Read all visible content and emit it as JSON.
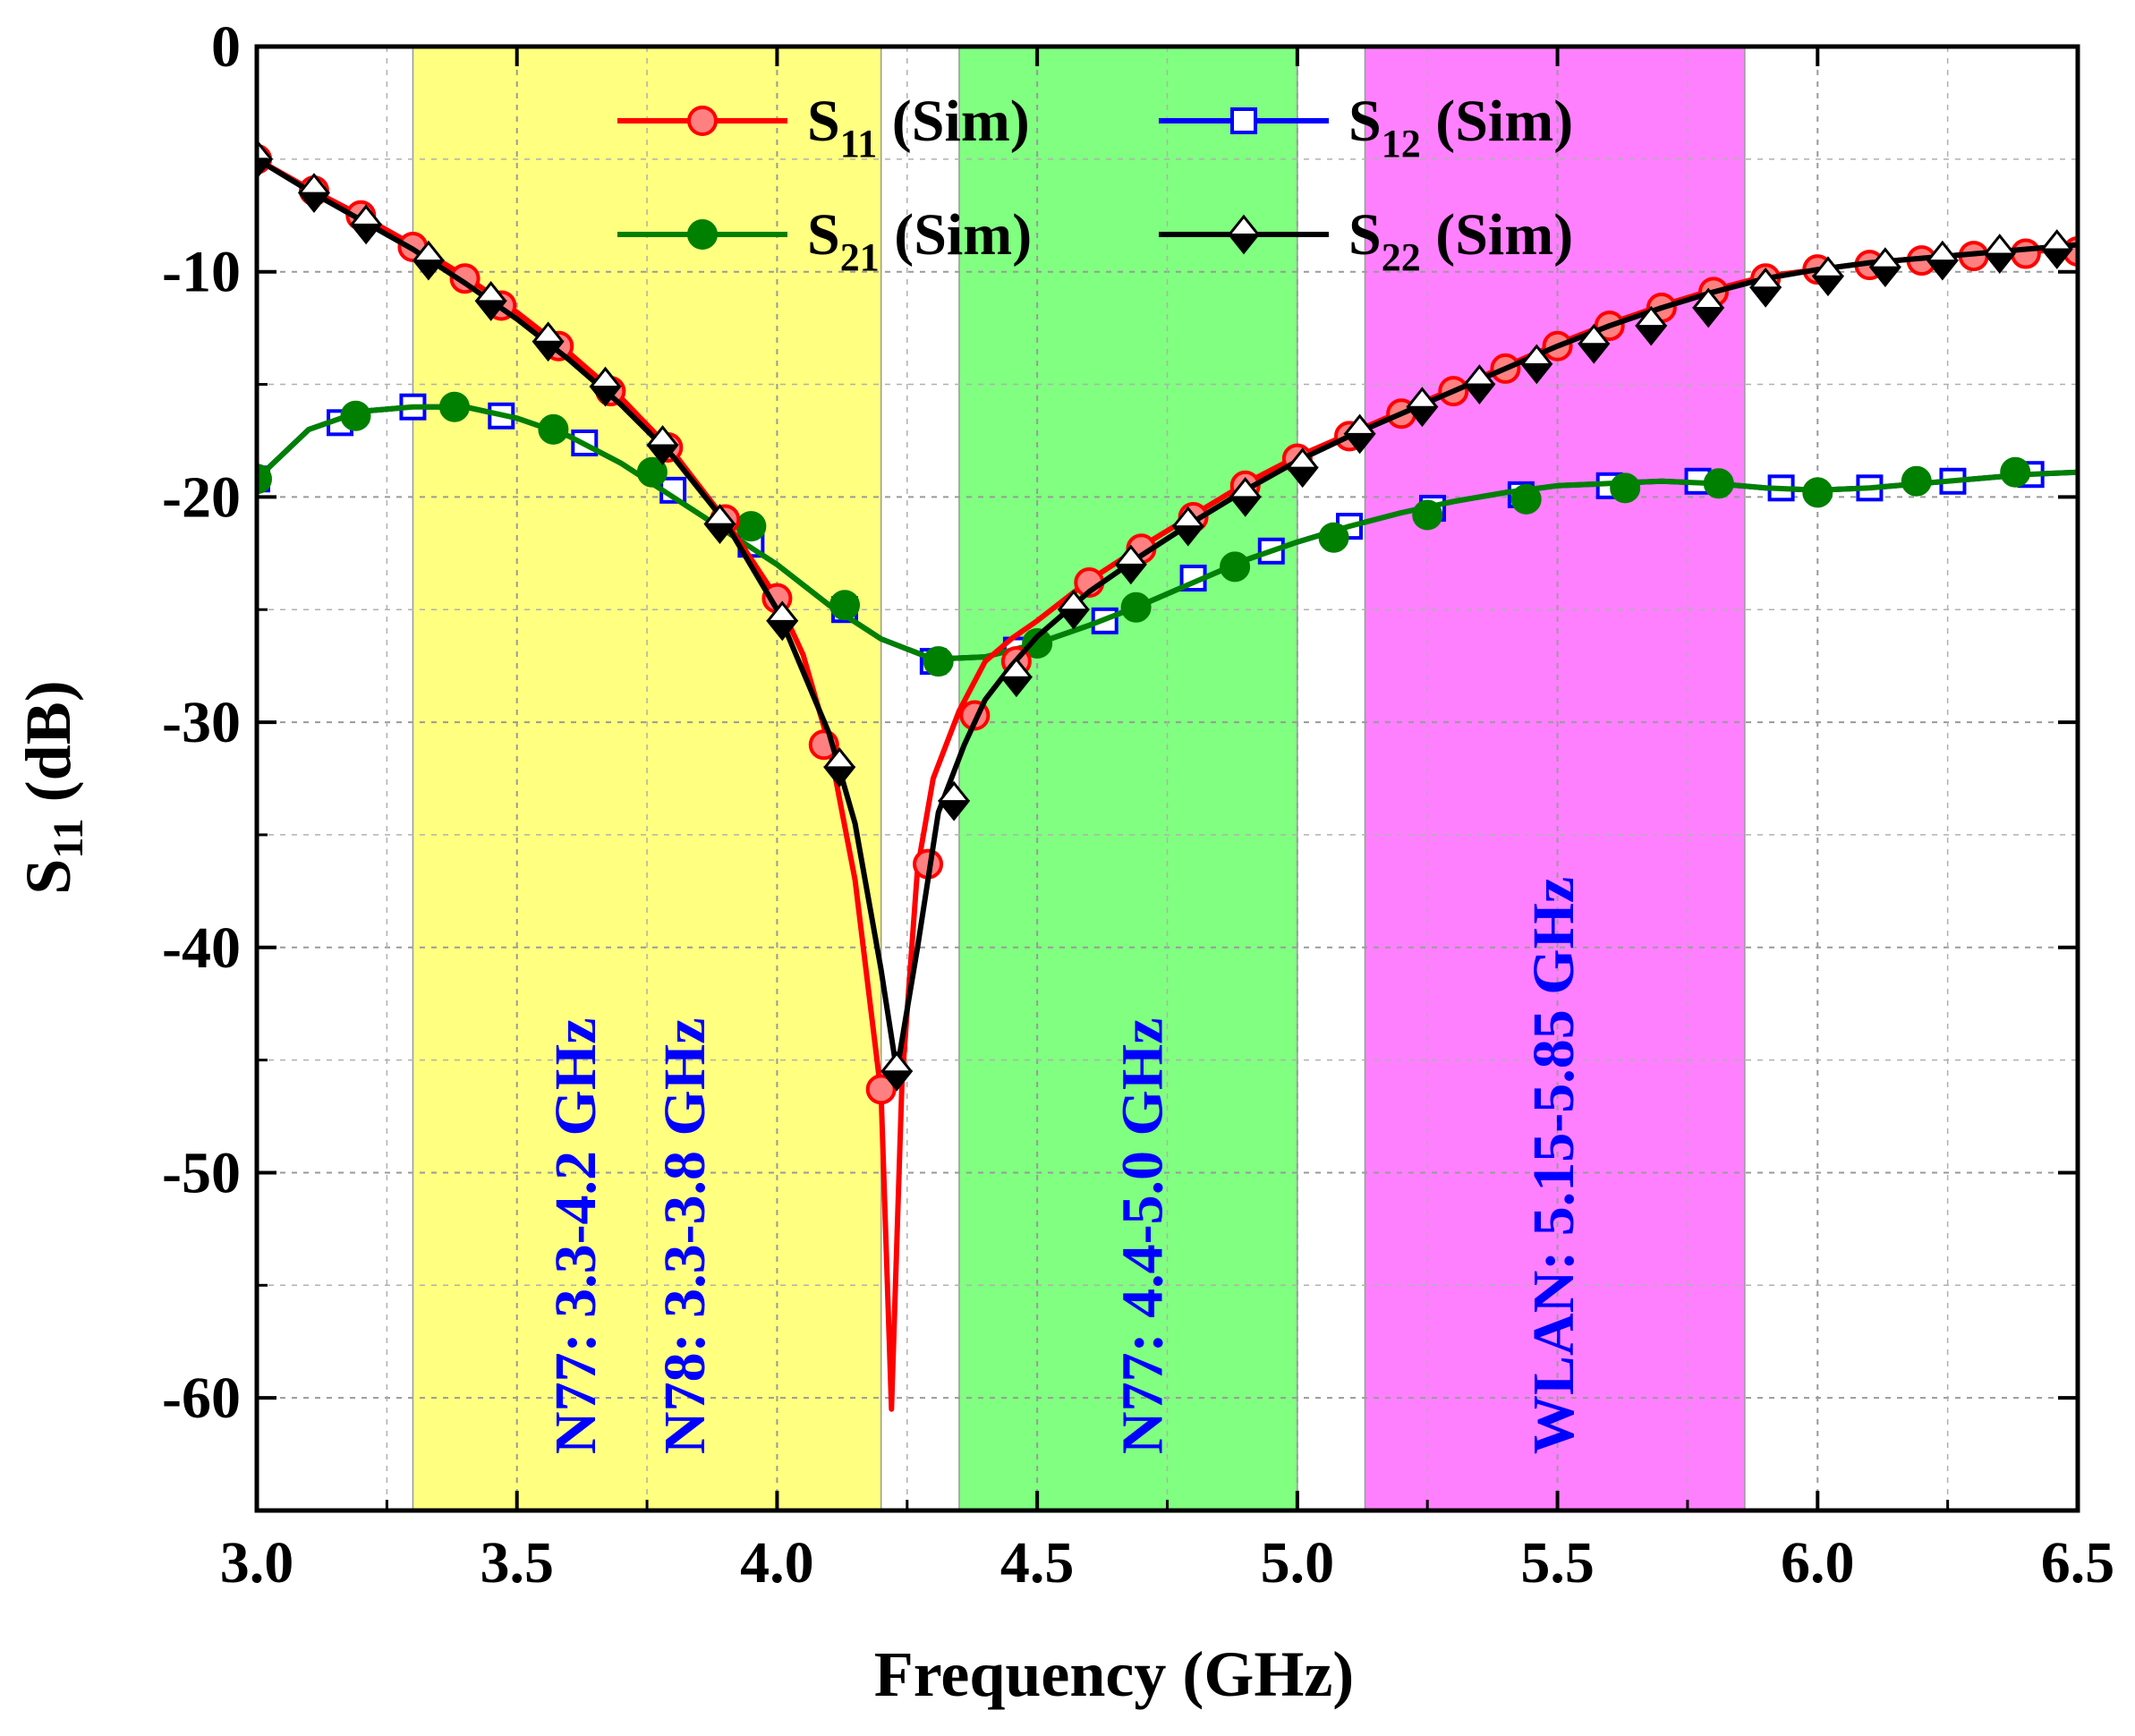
{
  "chart_data": {
    "type": "line",
    "xlabel": "Frequency (GHz)",
    "ylabel_main": "S",
    "ylabel_sub": "11",
    "ylabel_unit": " (dB)",
    "xlim": [
      3.0,
      6.5
    ],
    "ylim": [
      -65,
      0
    ],
    "xticks": [
      3.0,
      3.5,
      4.0,
      4.5,
      5.0,
      5.5,
      6.0,
      6.5
    ],
    "xtick_labels": [
      "3.0",
      "3.5",
      "4.0",
      "4.5",
      "5.0",
      "5.5",
      "6.0",
      "6.5"
    ],
    "yticks": [
      0,
      -10,
      -20,
      -30,
      -40,
      -50,
      -60
    ],
    "ytick_labels": [
      "0",
      "-10",
      "-20",
      "-30",
      "-40",
      "-50",
      "-60"
    ],
    "grid": true,
    "bands": [
      {
        "from": 3.3,
        "to": 4.2,
        "color": "#ffff80",
        "labels": [
          "N77: 3.3-4.2 GHz",
          "N78: 3.3-3.8 GHz"
        ],
        "label_x": [
          3.65,
          3.86
        ]
      },
      {
        "from": 4.35,
        "to": 5.0,
        "color": "#80ff80",
        "labels": [
          "N77: 4.4-5.0 GHz"
        ],
        "label_x": [
          4.74
        ]
      },
      {
        "from": 5.13,
        "to": 5.86,
        "color": "#ff80ff",
        "labels": [
          "WLAN: 5.15-5.85 GHz"
        ],
        "label_x": [
          5.53
        ]
      }
    ],
    "series": [
      {
        "name_main": "S",
        "name_sub": "11",
        "name_tail": "  (Sim)",
        "color": "#ff0000",
        "marker": "circle",
        "marker_fill": "#ff8080",
        "x": [
          3.0,
          3.1,
          3.2,
          3.3,
          3.4,
          3.5,
          3.6,
          3.7,
          3.8,
          3.9,
          4.0,
          4.05,
          4.1,
          4.15,
          4.2,
          4.22,
          4.24,
          4.27,
          4.3,
          4.35,
          4.4,
          4.45,
          4.5,
          4.6,
          4.7,
          4.8,
          4.9,
          5.0,
          5.1,
          5.2,
          5.3,
          5.4,
          5.5,
          5.6,
          5.7,
          5.8,
          5.9,
          6.0,
          6.1,
          6.2,
          6.3,
          6.4,
          6.5
        ],
        "y": [
          -5.0,
          -6.3,
          -7.5,
          -8.8,
          -10.2,
          -11.8,
          -13.6,
          -15.6,
          -18.0,
          -21.0,
          -24.5,
          -27.0,
          -31.0,
          -37.0,
          -46.5,
          -60.5,
          -46.0,
          -36.5,
          -32.5,
          -29.5,
          -27.3,
          -26.3,
          -25.5,
          -23.7,
          -22.2,
          -20.8,
          -19.4,
          -18.2,
          -17.2,
          -16.2,
          -15.2,
          -14.2,
          -13.2,
          -12.3,
          -11.5,
          -10.8,
          -10.2,
          -9.9,
          -9.6,
          -9.4,
          -9.2,
          -9.1,
          -9.0
        ],
        "marker_x": [
          3.0,
          3.11,
          3.2,
          3.3,
          3.4,
          3.47,
          3.58,
          3.68,
          3.79,
          3.9,
          4.0,
          4.09,
          4.2,
          4.29,
          4.38,
          4.46,
          4.6,
          4.7,
          4.8,
          4.9,
          5.0,
          5.1,
          5.2,
          5.3,
          5.4,
          5.5,
          5.6,
          5.7,
          5.8,
          5.9,
          6.0,
          6.1,
          6.2,
          6.3,
          6.4,
          6.5
        ],
        "marker_y": [
          -5.0,
          -6.4,
          -7.5,
          -8.9,
          -10.3,
          -11.5,
          -13.3,
          -15.3,
          -17.8,
          -21.0,
          -24.5,
          -31.0,
          -46.3,
          -36.3,
          -29.7,
          -27.3,
          -23.8,
          -22.3,
          -20.9,
          -19.5,
          -18.3,
          -17.3,
          -16.3,
          -15.3,
          -14.3,
          -13.3,
          -12.4,
          -11.6,
          -10.9,
          -10.3,
          -9.9,
          -9.7,
          -9.5,
          -9.3,
          -9.2,
          -9.1
        ]
      },
      {
        "name_main": "S",
        "name_sub": "12",
        "name_tail": " (Sim)",
        "color": "#0000ff",
        "marker": "square",
        "marker_fill": "#ffffff",
        "x": [
          3.0,
          3.1,
          3.2,
          3.3,
          3.4,
          3.5,
          3.6,
          3.7,
          3.8,
          3.9,
          4.0,
          4.1,
          4.2,
          4.3,
          4.4,
          4.5,
          4.6,
          4.7,
          4.8,
          4.9,
          5.0,
          5.1,
          5.2,
          5.3,
          5.4,
          5.5,
          5.6,
          5.7,
          5.8,
          5.9,
          6.0,
          6.1,
          6.2,
          6.3,
          6.4,
          6.5
        ],
        "y": [
          -19.2,
          -17.0,
          -16.2,
          -16.0,
          -16.0,
          -16.5,
          -17.3,
          -18.5,
          -20.0,
          -21.5,
          -23.0,
          -24.8,
          -26.3,
          -27.2,
          -27.1,
          -26.5,
          -25.7,
          -24.8,
          -23.8,
          -22.8,
          -22.0,
          -21.3,
          -20.7,
          -20.2,
          -19.8,
          -19.5,
          -19.4,
          -19.3,
          -19.4,
          -19.6,
          -19.7,
          -19.6,
          -19.4,
          -19.2,
          -19.0,
          -18.9
        ],
        "marker_x": [
          3.0,
          3.16,
          3.3,
          3.47,
          3.63,
          3.8,
          3.95,
          4.13,
          4.3,
          4.46,
          4.63,
          4.8,
          4.95,
          5.1,
          5.26,
          5.43,
          5.6,
          5.77,
          5.93,
          6.1,
          6.26,
          6.41
        ],
        "marker_y": [
          -19.2,
          -16.7,
          -16.0,
          -16.4,
          -17.6,
          -19.7,
          -22.1,
          -25.0,
          -27.3,
          -26.8,
          -25.5,
          -23.6,
          -22.4,
          -21.3,
          -20.5,
          -19.9,
          -19.5,
          -19.3,
          -19.6,
          -19.6,
          -19.3,
          -19.0
        ]
      },
      {
        "name_main": "S",
        "name_sub": "21",
        "name_tail": "  (Sim)",
        "color": "#008000",
        "marker": "circle",
        "marker_fill": "#008000",
        "x": [
          3.0,
          3.1,
          3.2,
          3.3,
          3.4,
          3.5,
          3.6,
          3.7,
          3.8,
          3.9,
          4.0,
          4.1,
          4.2,
          4.3,
          4.4,
          4.5,
          4.6,
          4.7,
          4.8,
          4.9,
          5.0,
          5.1,
          5.2,
          5.3,
          5.4,
          5.5,
          5.6,
          5.7,
          5.8,
          5.9,
          6.0,
          6.1,
          6.2,
          6.3,
          6.4,
          6.5
        ],
        "y": [
          -19.2,
          -17.0,
          -16.2,
          -16.0,
          -16.0,
          -16.5,
          -17.3,
          -18.5,
          -20.0,
          -21.5,
          -23.0,
          -24.8,
          -26.3,
          -27.2,
          -27.1,
          -26.5,
          -25.7,
          -24.8,
          -23.8,
          -22.8,
          -22.0,
          -21.3,
          -20.7,
          -20.2,
          -19.8,
          -19.5,
          -19.4,
          -19.3,
          -19.4,
          -19.6,
          -19.7,
          -19.6,
          -19.4,
          -19.2,
          -19.0,
          -18.9
        ],
        "marker_x": [
          3.0,
          3.19,
          3.38,
          3.57,
          3.76,
          3.95,
          4.13,
          4.31,
          4.5,
          4.69,
          4.88,
          5.07,
          5.25,
          5.44,
          5.63,
          5.81,
          6.0,
          6.19,
          6.38
        ],
        "marker_y": [
          -19.2,
          -16.4,
          -16.0,
          -17.0,
          -18.9,
          -21.3,
          -24.8,
          -27.3,
          -26.5,
          -24.9,
          -23.1,
          -21.8,
          -20.8,
          -20.1,
          -19.6,
          -19.4,
          -19.8,
          -19.3,
          -18.9
        ]
      },
      {
        "name_main": "S",
        "name_sub": "22",
        "name_tail": " (Sim)",
        "color": "#000000",
        "marker": "diamond",
        "marker_fill": "#ffffff",
        "x": [
          3.0,
          3.1,
          3.2,
          3.3,
          3.4,
          3.5,
          3.6,
          3.7,
          3.8,
          3.9,
          4.0,
          4.1,
          4.15,
          4.2,
          4.23,
          4.27,
          4.31,
          4.36,
          4.4,
          4.45,
          4.5,
          4.6,
          4.7,
          4.8,
          4.9,
          5.0,
          5.1,
          5.2,
          5.3,
          5.4,
          5.5,
          5.6,
          5.7,
          5.8,
          5.9,
          6.0,
          6.1,
          6.2,
          6.3,
          6.4,
          6.5
        ],
        "y": [
          -5.0,
          -6.4,
          -7.7,
          -9.0,
          -10.5,
          -12.1,
          -13.9,
          -15.9,
          -18.2,
          -21.1,
          -25.0,
          -30.5,
          -34.5,
          -41.0,
          -45.5,
          -40.0,
          -34.0,
          -31.0,
          -29.0,
          -27.5,
          -26.2,
          -24.2,
          -22.6,
          -21.1,
          -19.7,
          -18.4,
          -17.3,
          -16.3,
          -15.3,
          -14.3,
          -13.3,
          -12.4,
          -11.6,
          -10.9,
          -10.3,
          -9.9,
          -9.6,
          -9.4,
          -9.2,
          -9.0,
          -8.8
        ],
        "marker_x": [
          3.0,
          3.11,
          3.21,
          3.33,
          3.45,
          3.56,
          3.67,
          3.78,
          3.89,
          4.01,
          4.12,
          4.23,
          4.34,
          4.46,
          4.57,
          4.68,
          4.79,
          4.9,
          5.01,
          5.12,
          5.24,
          5.35,
          5.46,
          5.57,
          5.68,
          5.79,
          5.9,
          6.02,
          6.13,
          6.24,
          6.35,
          6.46
        ],
        "marker_y": [
          -5.0,
          -6.5,
          -7.9,
          -9.5,
          -11.3,
          -13.1,
          -15.1,
          -17.7,
          -21.2,
          -25.5,
          -32.0,
          -45.5,
          -33.5,
          -28.0,
          -25.0,
          -23.0,
          -21.3,
          -20.0,
          -18.7,
          -17.2,
          -16.0,
          -15.0,
          -14.1,
          -13.2,
          -12.4,
          -11.6,
          -10.7,
          -10.2,
          -9.8,
          -9.5,
          -9.2,
          -9.0
        ]
      }
    ]
  }
}
